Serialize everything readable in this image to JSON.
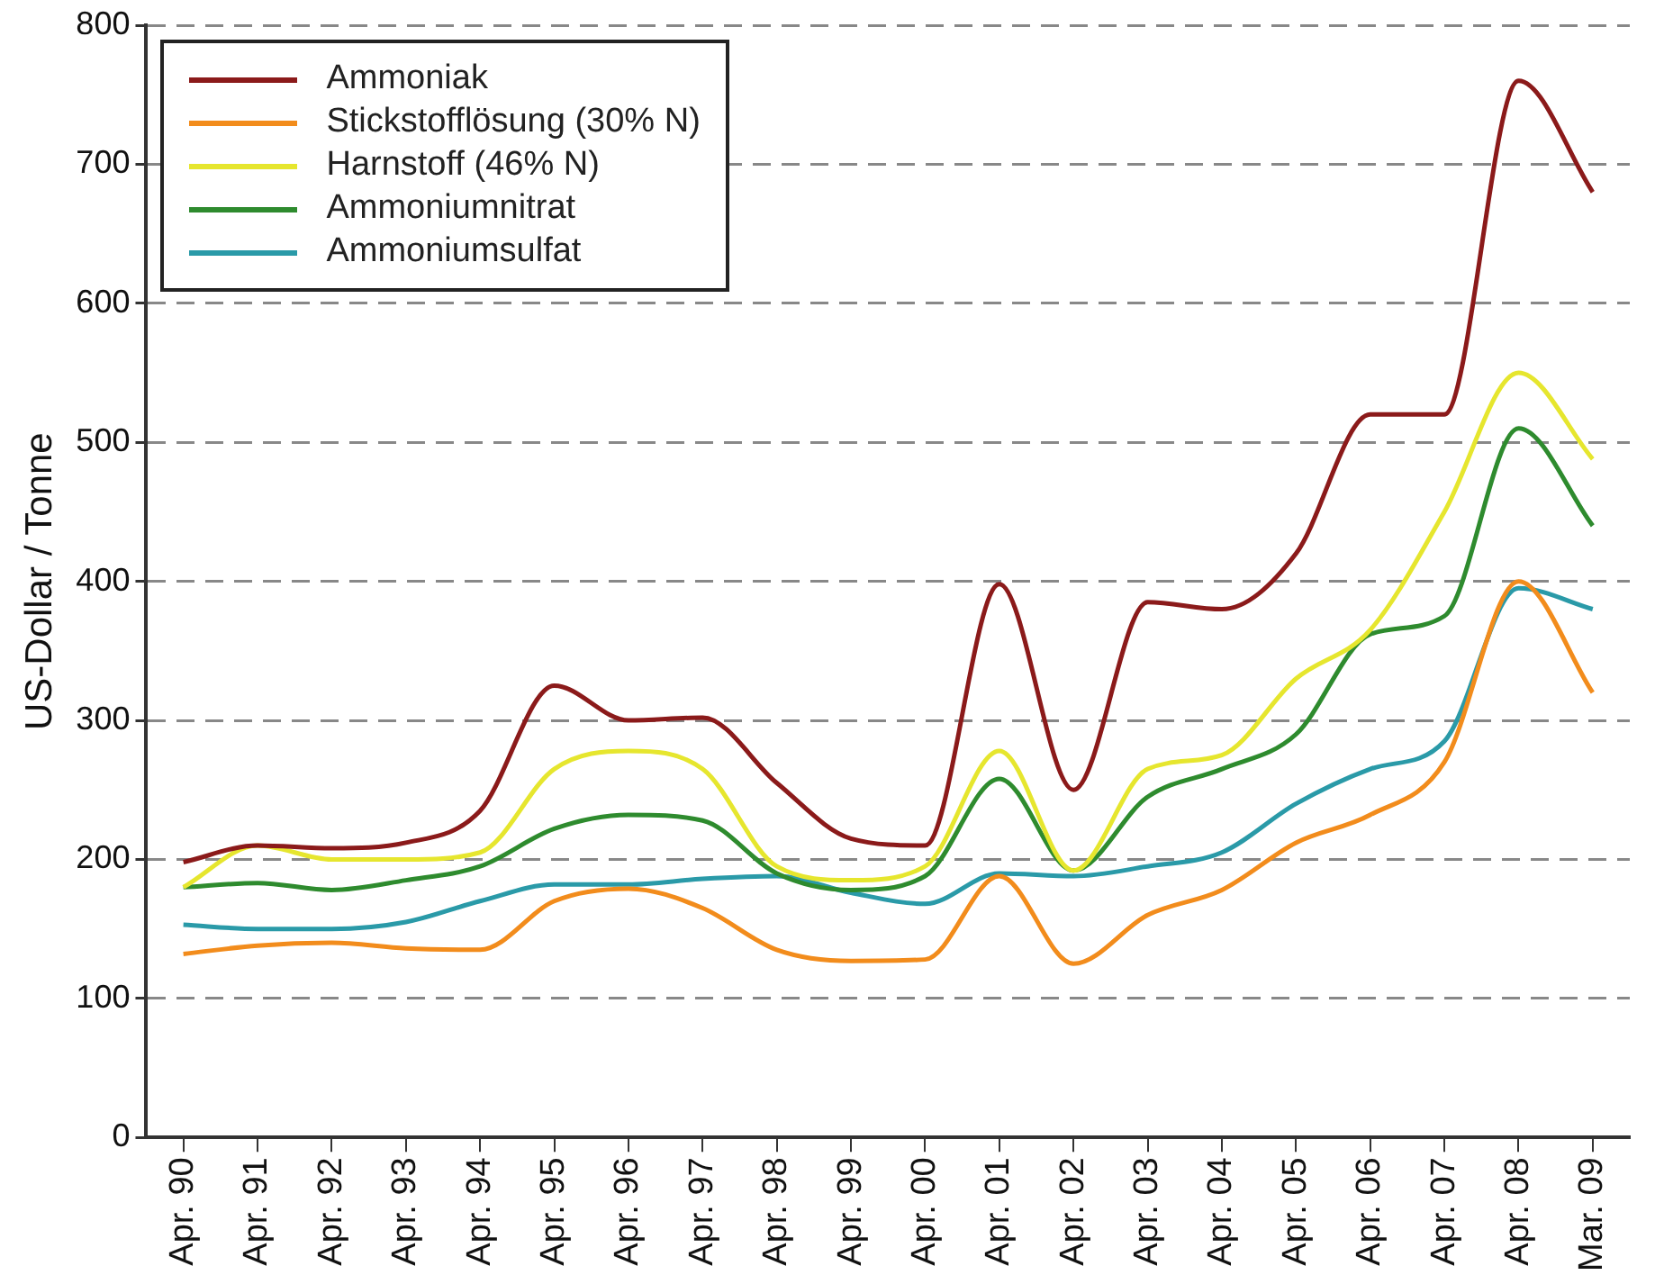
{
  "chart_data": {
    "type": "line",
    "ylabel": "US-Dollar / Tonne",
    "categories": [
      "Apr. 90",
      "Apr. 91",
      "Apr. 92",
      "Apr. 93",
      "Apr. 94",
      "Apr. 95",
      "Apr. 96",
      "Apr. 97",
      "Apr. 98",
      "Apr. 99",
      "Apr. 00",
      "Apr. 01",
      "Apr. 02",
      "Apr. 03",
      "Apr. 04",
      "Apr. 05",
      "Apr. 06",
      "Apr. 07",
      "Apr. 08",
      "Mar. 09"
    ],
    "series": [
      {
        "name": "Ammoniak",
        "color": "#8b1a1a",
        "values": [
          198,
          210,
          208,
          212,
          235,
          325,
          300,
          302,
          255,
          215,
          210,
          398,
          250,
          385,
          380,
          420,
          520,
          520,
          760,
          680
        ]
      },
      {
        "name": "Stickstofflösung (30% N)",
        "color": "#f28c1c",
        "values": [
          132,
          138,
          140,
          136,
          135,
          170,
          179,
          165,
          135,
          127,
          128,
          188,
          125,
          160,
          178,
          212,
          232,
          270,
          400,
          320
        ]
      },
      {
        "name": "Harnstoff (46% N)",
        "color": "#e6e62e",
        "values": [
          180,
          210,
          200,
          200,
          205,
          265,
          278,
          265,
          195,
          185,
          195,
          278,
          192,
          265,
          275,
          330,
          365,
          450,
          550,
          488
        ]
      },
      {
        "name": "Ammoniumnitrat",
        "color": "#2e8b2e",
        "values": [
          180,
          183,
          178,
          185,
          195,
          222,
          232,
          228,
          190,
          178,
          188,
          258,
          192,
          245,
          265,
          290,
          362,
          375,
          510,
          440
        ]
      },
      {
        "name": "Ammoniumsulfat",
        "color": "#2a9aa8",
        "values": [
          153,
          150,
          150,
          155,
          170,
          182,
          182,
          186,
          188,
          176,
          168,
          190,
          188,
          195,
          205,
          240,
          265,
          285,
          395,
          380
        ]
      }
    ],
    "ylim": [
      0,
      800
    ],
    "yticks": [
      0,
      100,
      200,
      300,
      400,
      500,
      600,
      700,
      800
    ],
    "grid": "y",
    "legend": "top left",
    "marker": "none",
    "line_style": "solid"
  }
}
